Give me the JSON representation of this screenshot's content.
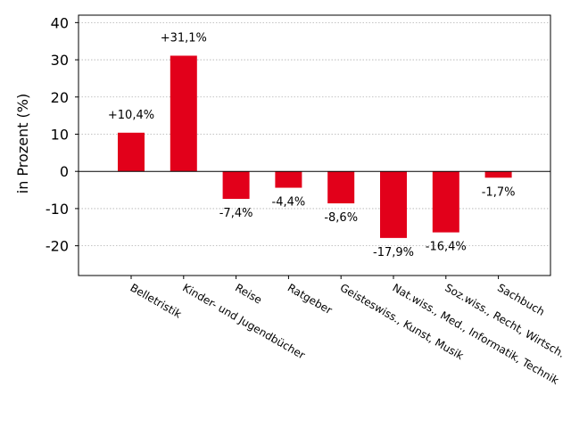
{
  "chart_data": {
    "type": "bar",
    "categories": [
      "Belletristik",
      "Kinder- und Jugendbücher",
      "Reise",
      "Ratgeber",
      "Geisteswiss., Kunst, Musik",
      "Nat.wiss., Med., Informatik, Technik",
      "Soz.wiss., Recht, Wirtsch.",
      "Sachbuch"
    ],
    "values": [
      10.4,
      31.1,
      -7.4,
      -4.4,
      -8.6,
      -17.9,
      -16.4,
      -1.7
    ],
    "data_labels": [
      "+10,4%",
      "+31,1%",
      "-7,4%",
      "-4,4%",
      "-8,6%",
      "-17,9%",
      "-16,4%",
      "-1,7%"
    ],
    "ylabel": "in Prozent (%)",
    "xlabel": "",
    "ylim": [
      -28,
      42
    ],
    "yticks": [
      40,
      30,
      20,
      10,
      0,
      -10,
      -20
    ],
    "ytick_labels": [
      "40",
      "30",
      "20",
      "10",
      "0",
      "-10",
      "-20"
    ],
    "bar_color": "#e2001a",
    "grid": "horizontal-dotted",
    "zero_line": true
  }
}
